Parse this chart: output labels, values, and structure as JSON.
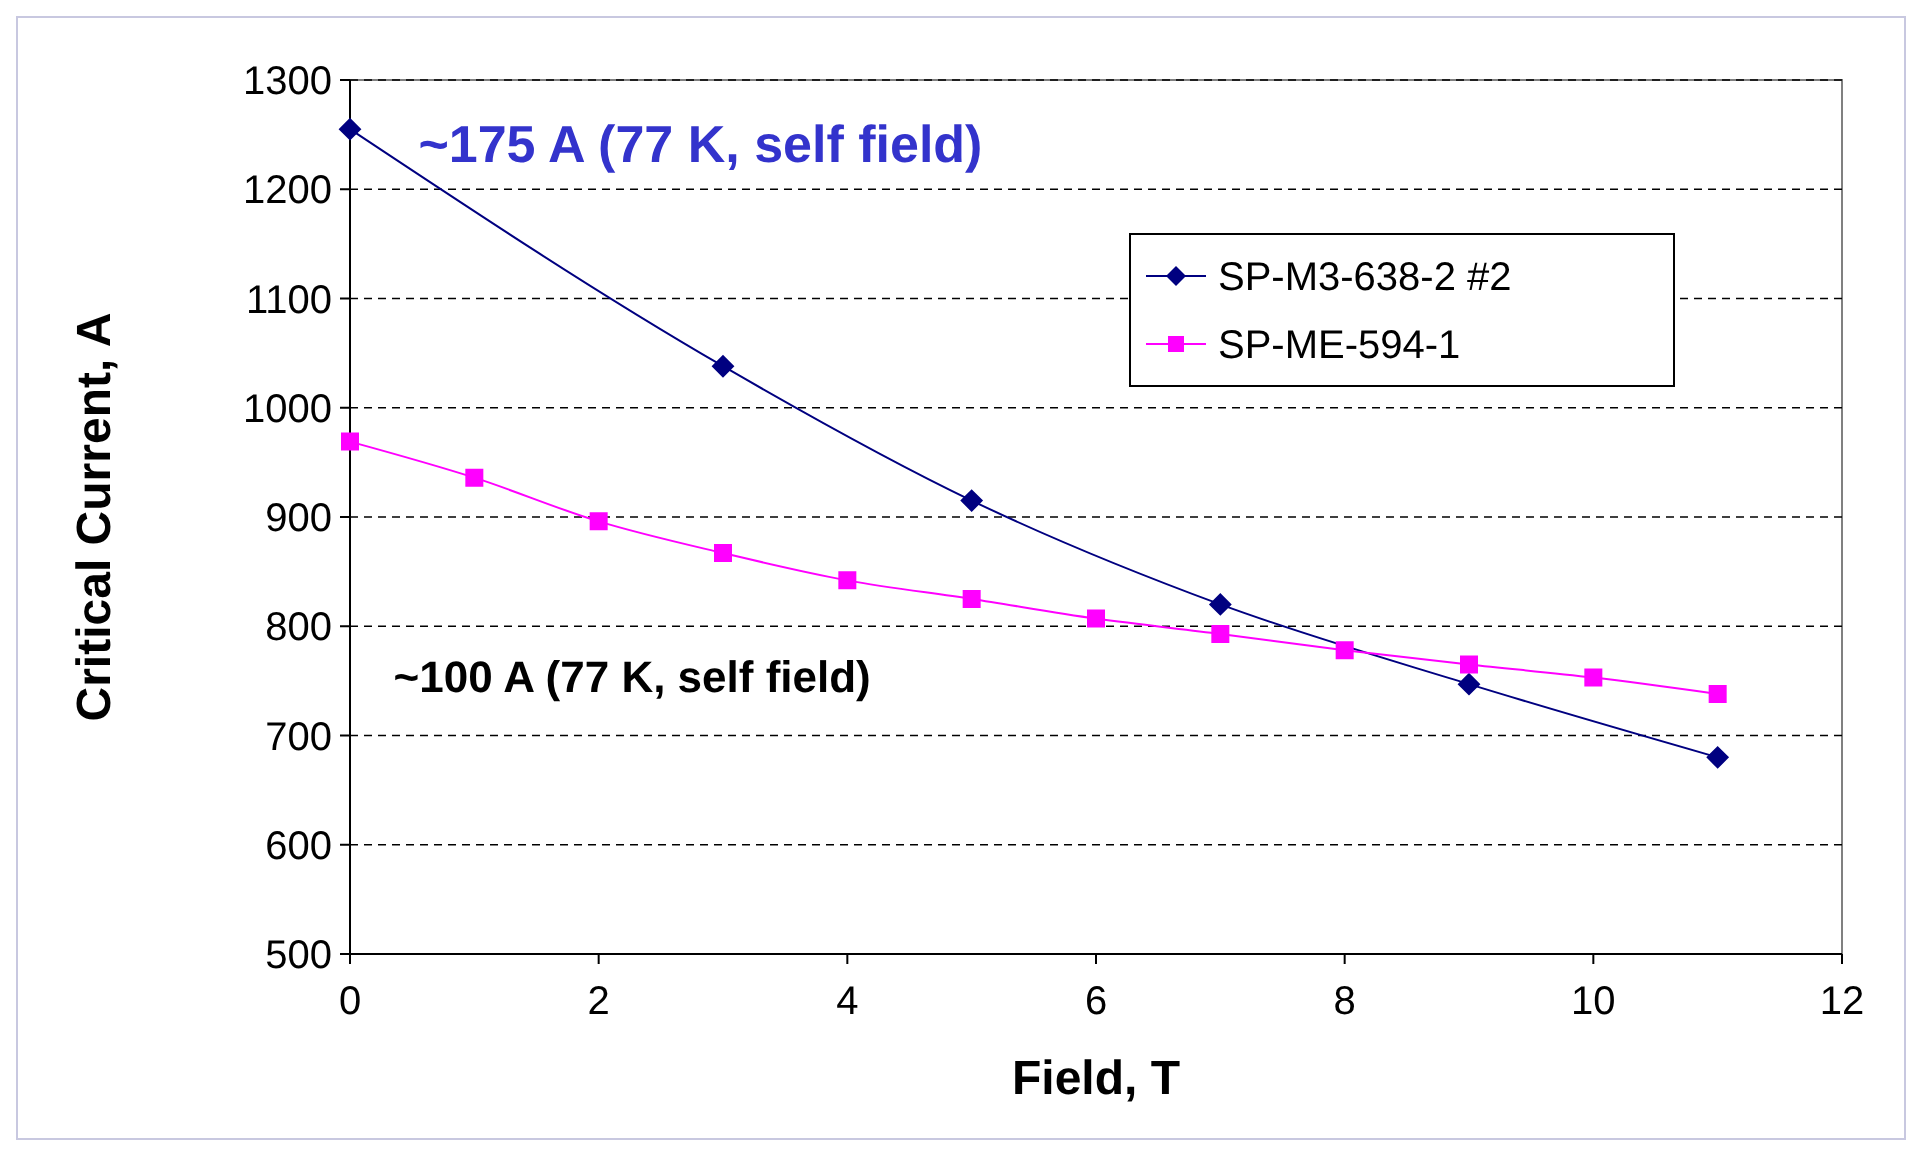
{
  "chart_data": {
    "type": "line",
    "xlabel": "Field, T",
    "ylabel": "Critical Current, A",
    "xlim": [
      0,
      12
    ],
    "xticks": [
      0,
      2,
      4,
      6,
      8,
      10,
      12
    ],
    "ylim": [
      500,
      1300
    ],
    "yticks": [
      500,
      600,
      700,
      800,
      900,
      1000,
      1100,
      1200,
      1300
    ],
    "grid": "y",
    "legend": "top right",
    "annotations": [
      "~175 A (77 K, self field)",
      "~100 A (77 K, self field)"
    ],
    "series": [
      {
        "name": "SP-M3-638-2 #2",
        "color": "#000080",
        "marker": "diamond",
        "x": [
          0,
          3,
          5,
          7,
          9,
          11
        ],
        "values": [
          1255,
          1038,
          915,
          820,
          747,
          680
        ]
      },
      {
        "name": "SP-ME-594-1",
        "color": "#ff00ff",
        "marker": "square",
        "x": [
          0,
          1,
          2,
          3,
          4,
          5,
          6,
          7,
          8,
          9,
          10,
          11
        ],
        "values": [
          969,
          936,
          896,
          867,
          842,
          825,
          807,
          793,
          778,
          765,
          753,
          738
        ]
      }
    ]
  }
}
